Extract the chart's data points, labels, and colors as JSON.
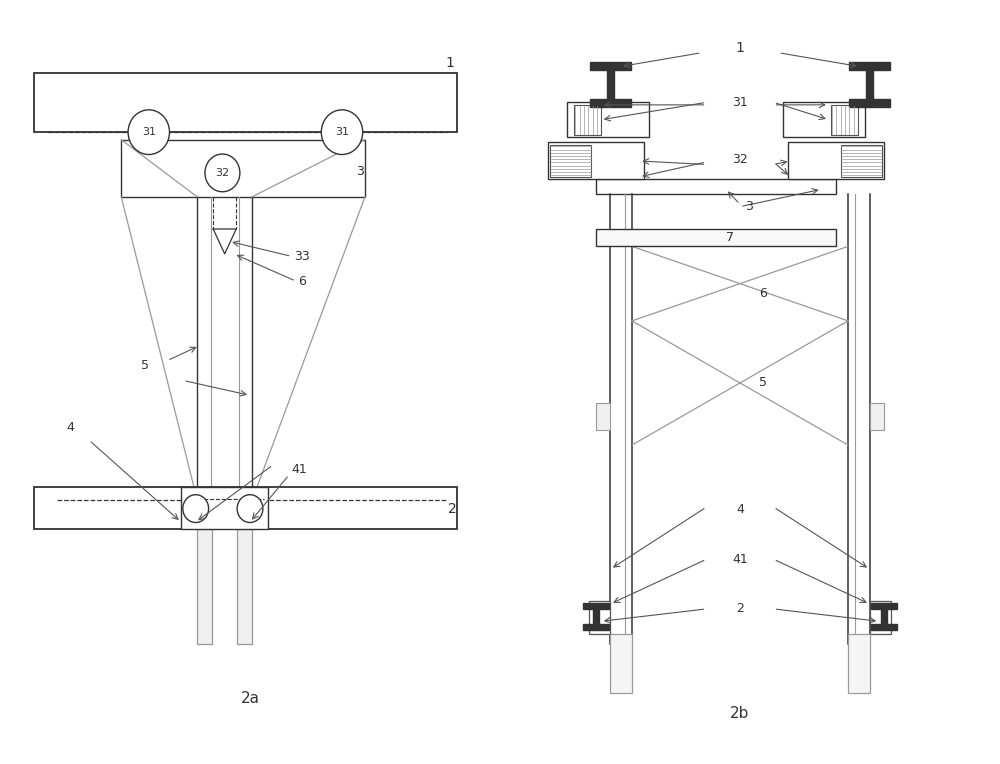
{
  "fig_width": 10.0,
  "fig_height": 7.64,
  "bg_color": "#ffffff",
  "lc": "#555555",
  "lc_dark": "#333333",
  "lc_light": "#999999",
  "label_fs": 9,
  "title_fs": 11
}
